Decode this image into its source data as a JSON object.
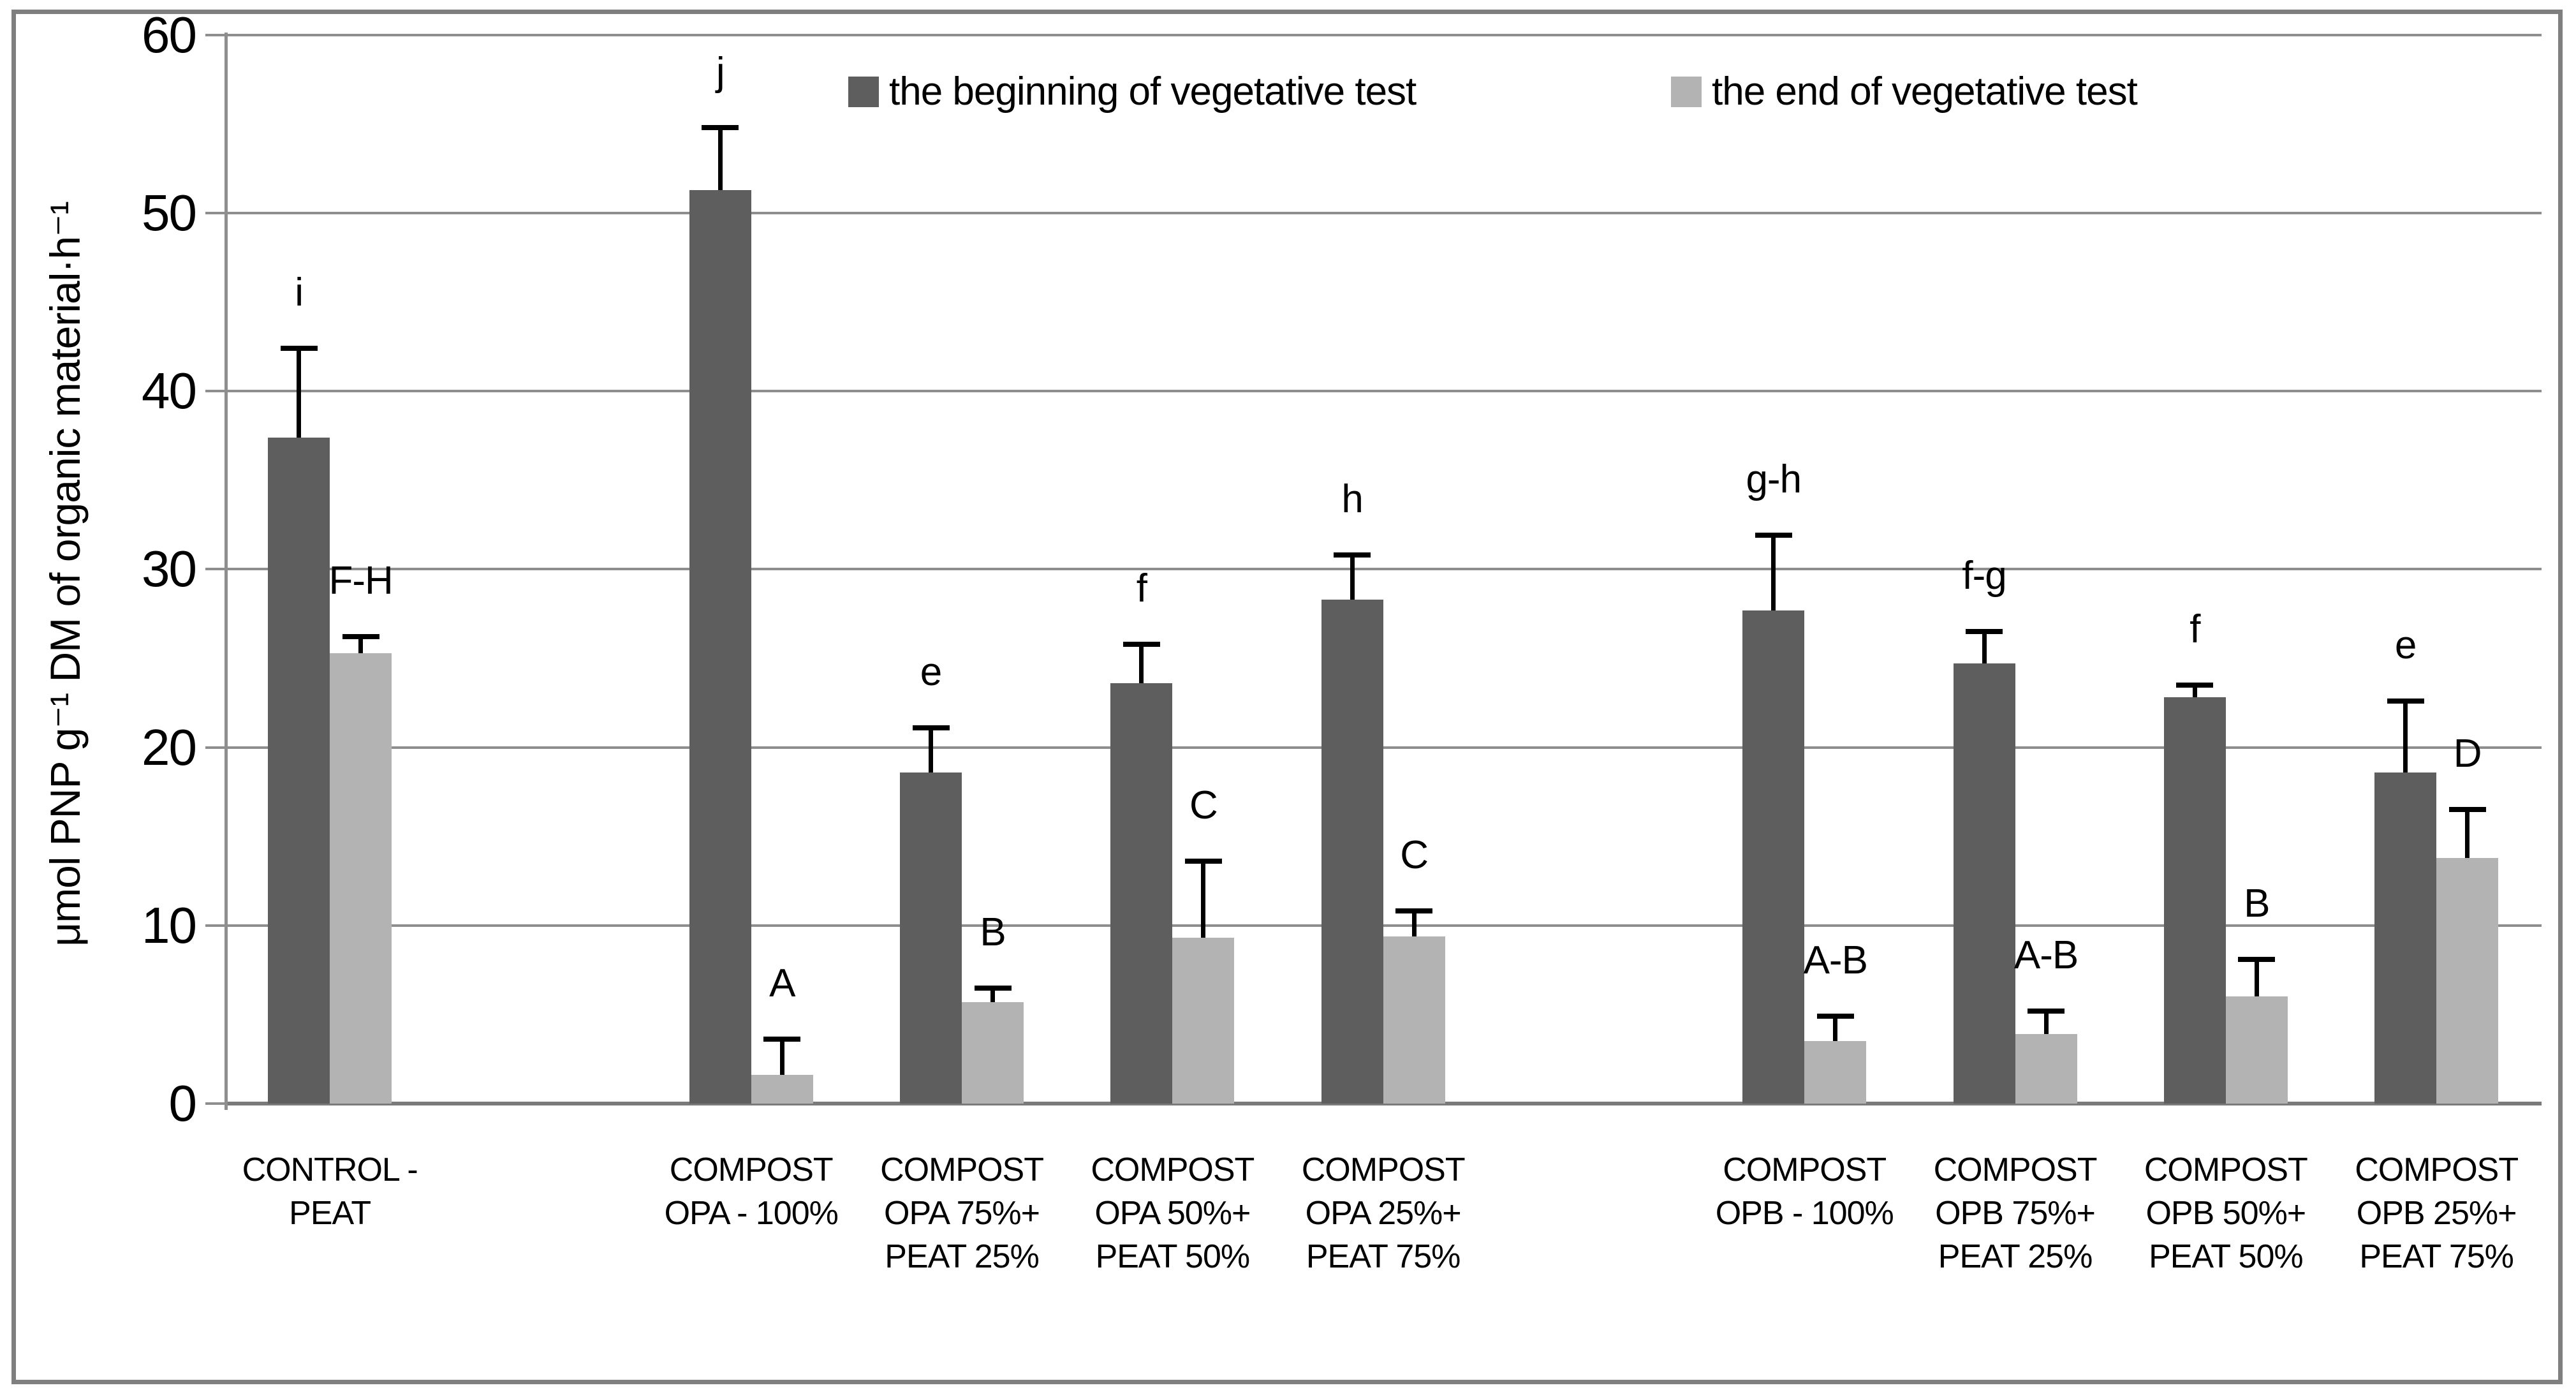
{
  "figure": {
    "border_color": "#7f7f7f",
    "background": "#ffffff"
  },
  "y_axis": {
    "title": "μmol PNP g⁻¹ DM of organic material·h⁻¹",
    "ticks": [
      0,
      10,
      20,
      30,
      40,
      50,
      60
    ],
    "min": 0,
    "max": 60
  },
  "legend": {
    "position": "top-center",
    "items": [
      {
        "label": "the beginning of vegetative test",
        "color": "#5e5e5e"
      },
      {
        "label": "the end of vegetative test",
        "color": "#b3b3b3"
      }
    ]
  },
  "chart_data": {
    "type": "bar",
    "title": "",
    "xlabel": "",
    "ylabel": "μmol PNP g⁻¹ DM of organic material·h⁻¹",
    "ylim": [
      0,
      60
    ],
    "grid": "horizontal",
    "legend_position": "top-center",
    "categories": [
      "CONTROL - PEAT",
      "COMPOST OPA - 100%",
      "COMPOST OPA 75%+ PEAT 25%",
      "COMPOST OPA 50%+ PEAT 50%",
      "COMPOST OPA 25%+ PEAT 75%",
      "COMPOST OPB - 100%",
      "COMPOST OPB 75%+ PEAT 25%",
      "COMPOST OPB 50%+ PEAT 50%",
      "COMPOST OPB 25%+ PEAT 75%"
    ],
    "category_label_lines": [
      [
        "CONTROL -",
        "PEAT"
      ],
      [
        "COMPOST",
        "OPA - 100%"
      ],
      [
        "COMPOST",
        "OPA 75%+",
        "PEAT 25%"
      ],
      [
        "COMPOST",
        "OPA 50%+",
        "PEAT 50%"
      ],
      [
        "COMPOST",
        "OPA 25%+",
        "PEAT 75%"
      ],
      [
        "COMPOST",
        "OPB - 100%"
      ],
      [
        "COMPOST",
        "OPB 75%+",
        "PEAT 25%"
      ],
      [
        "COMPOST",
        "OPB 50%+",
        "PEAT 50%"
      ],
      [
        "COMPOST",
        "OPB 25%+",
        "PEAT 75%"
      ]
    ],
    "slot_of_category": [
      0,
      2,
      3,
      4,
      5,
      7,
      8,
      9,
      10
    ],
    "num_slots": 11,
    "series": [
      {
        "name": "the beginning of vegetative test",
        "color": "#5e5e5e",
        "values": [
          37.4,
          51.3,
          18.6,
          23.6,
          28.3,
          27.7,
          24.7,
          22.8,
          18.6
        ],
        "errors": [
          5.0,
          3.5,
          2.5,
          2.2,
          2.5,
          4.2,
          1.8,
          0.7,
          4.0
        ],
        "letters": [
          "i",
          "j",
          "e",
          "f",
          "h",
          "g-h",
          "f-g",
          "f",
          "e"
        ]
      },
      {
        "name": "the end of vegetative test",
        "color": "#b3b3b3",
        "values": [
          25.3,
          1.6,
          5.7,
          9.3,
          9.4,
          3.5,
          3.9,
          6.0,
          13.8
        ],
        "errors": [
          0.9,
          2.0,
          0.8,
          4.3,
          1.4,
          1.4,
          1.3,
          2.1,
          2.7
        ],
        "letters": [
          "F-H",
          "A",
          "B",
          "C",
          "C",
          "A-B",
          "A-B",
          "B",
          "D"
        ]
      }
    ]
  }
}
